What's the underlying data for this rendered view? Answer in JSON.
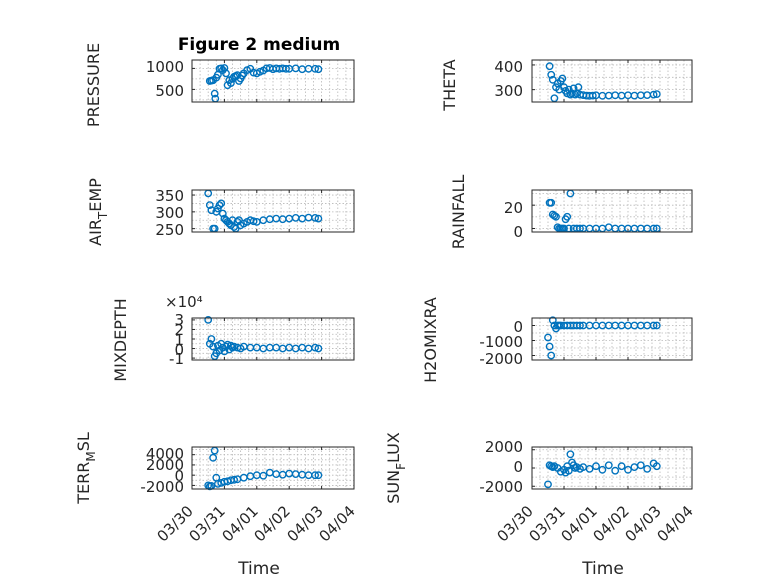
{
  "figure": {
    "background": "#ffffff",
    "marker_color": "#0072BD"
  },
  "chart_data": [
    {
      "id": "pressure",
      "type": "scatter",
      "title": "Figure 2 medium",
      "ylabel": "PRESSURE",
      "xlabel": "",
      "xlim": [
        0,
        5
      ],
      "ylim": [
        200,
        1200
      ],
      "yticks": [
        500,
        1000
      ],
      "ytick_labels": [
        "500",
        "1000"
      ],
      "x": [
        0.55,
        0.6,
        0.65,
        0.7,
        0.72,
        0.75,
        0.8,
        0.85,
        0.9,
        0.95,
        1.0,
        1.05,
        1.1,
        1.15,
        1.2,
        1.25,
        1.3,
        1.35,
        1.4,
        1.45,
        1.5,
        1.55,
        1.6,
        1.7,
        1.8,
        1.9,
        2.0,
        2.1,
        2.2,
        2.3,
        2.4,
        2.5,
        2.6,
        2.7,
        2.8,
        2.9,
        3.0,
        3.2,
        3.4,
        3.6,
        3.8,
        3.9
      ],
      "values": [
        700,
        710,
        720,
        400,
        280,
        780,
        850,
        990,
        1000,
        960,
        1010,
        880,
        600,
        720,
        650,
        750,
        800,
        820,
        840,
        700,
        760,
        830,
        880,
        960,
        990,
        900,
        880,
        920,
        950,
        1000,
        1010,
        980,
        1000,
        990,
        1000,
        990,
        990,
        1000,
        980,
        990,
        990,
        980
      ]
    },
    {
      "id": "theta",
      "type": "scatter",
      "title": "",
      "ylabel": "THETA",
      "xlabel": "",
      "xlim": [
        0,
        5
      ],
      "ylim": [
        250,
        420
      ],
      "yticks": [
        300,
        400
      ],
      "ytick_labels": [
        "300",
        "400"
      ],
      "x": [
        0.55,
        0.6,
        0.65,
        0.7,
        0.75,
        0.8,
        0.85,
        0.9,
        0.95,
        1.0,
        1.05,
        1.1,
        1.15,
        1.2,
        1.25,
        1.3,
        1.35,
        1.4,
        1.45,
        1.5,
        1.6,
        1.7,
        1.8,
        1.9,
        2.0,
        2.2,
        2.4,
        2.6,
        2.8,
        3.0,
        3.2,
        3.4,
        3.6,
        3.8,
        3.9
      ],
      "values": [
        395,
        360,
        340,
        265,
        310,
        325,
        300,
        335,
        345,
        310,
        295,
        285,
        300,
        280,
        285,
        305,
        280,
        285,
        310,
        280,
        278,
        276,
        275,
        276,
        277,
        275,
        276,
        277,
        276,
        277,
        276,
        277,
        278,
        280,
        282
      ]
    },
    {
      "id": "air_temp",
      "type": "scatter",
      "title": "",
      "ylabel": "AIR_TEMP",
      "xlim": [
        0,
        5
      ],
      "ylim": [
        240,
        365
      ],
      "yticks": [
        250,
        300,
        350
      ],
      "ytick_labels": [
        "250",
        "300",
        "350"
      ],
      "x": [
        0.5,
        0.55,
        0.6,
        0.65,
        0.7,
        0.75,
        0.8,
        0.85,
        0.9,
        0.95,
        1.0,
        1.05,
        1.1,
        1.15,
        1.2,
        1.25,
        1.3,
        1.35,
        1.4,
        1.45,
        1.5,
        1.6,
        1.7,
        1.8,
        1.9,
        2.0,
        2.2,
        2.4,
        2.6,
        2.8,
        3.0,
        3.2,
        3.4,
        3.6,
        3.8,
        3.9
      ],
      "values": [
        355,
        320,
        305,
        250,
        250,
        300,
        310,
        320,
        325,
        295,
        280,
        275,
        270,
        265,
        260,
        275,
        255,
        250,
        270,
        275,
        260,
        265,
        270,
        275,
        272,
        270,
        275,
        278,
        280,
        278,
        280,
        282,
        280,
        283,
        282,
        280
      ]
    },
    {
      "id": "rainfall",
      "type": "scatter",
      "title": "",
      "ylabel": "RAINFALL",
      "xlim": [
        0,
        5
      ],
      "ylim": [
        -3,
        33
      ],
      "yticks": [
        0,
        20
      ],
      "ytick_labels": [
        "0",
        "20"
      ],
      "x": [
        0.55,
        0.6,
        0.65,
        0.7,
        0.75,
        0.8,
        0.85,
        0.9,
        0.95,
        1.0,
        1.05,
        1.1,
        1.15,
        1.2,
        1.3,
        1.4,
        1.5,
        1.6,
        1.8,
        2.0,
        2.2,
        2.4,
        2.6,
        2.8,
        3.0,
        3.2,
        3.4,
        3.6,
        3.8,
        3.9
      ],
      "values": [
        22,
        22,
        12,
        11,
        10,
        1,
        0,
        0,
        0,
        0,
        8,
        10,
        0,
        30,
        0,
        0,
        0,
        0,
        0,
        0,
        0,
        1,
        0,
        0,
        0,
        0,
        0,
        0,
        0,
        0
      ]
    },
    {
      "id": "mixdepth",
      "type": "scatter",
      "title": "",
      "ylabel": "MIXDEPTH",
      "exponent_label": "×10⁴",
      "xlim": [
        0,
        5
      ],
      "ylim": [
        -1.2,
        3.2
      ],
      "yticks": [
        -1,
        0,
        1,
        2,
        3
      ],
      "ytick_labels": [
        "-1",
        "0",
        "1",
        "2",
        "3"
      ],
      "x": [
        0.5,
        0.55,
        0.6,
        0.65,
        0.7,
        0.75,
        0.8,
        0.85,
        0.9,
        0.95,
        1.0,
        1.05,
        1.1,
        1.15,
        1.2,
        1.25,
        1.3,
        1.4,
        1.5,
        1.6,
        1.8,
        2.0,
        2.2,
        2.4,
        2.6,
        2.8,
        3.0,
        3.2,
        3.4,
        3.6,
        3.8,
        3.9
      ],
      "values": [
        3.0,
        0.5,
        1.0,
        0.2,
        -0.8,
        -0.5,
        0.3,
        -0.2,
        0.5,
        0.1,
        -0.3,
        0.2,
        0.4,
        -0.1,
        0.3,
        0.1,
        0.2,
        0.1,
        0.0,
        0.2,
        0.1,
        0.1,
        0.0,
        0.1,
        0.1,
        0.0,
        0.1,
        0.0,
        0.1,
        0.0,
        0.1,
        0.0
      ]
    },
    {
      "id": "h2omixra",
      "type": "scatter",
      "title": "",
      "ylabel": "H2OMIXRA",
      "xlim": [
        0,
        5
      ],
      "ylim": [
        -2300,
        500
      ],
      "yticks": [
        -2000,
        -1000,
        0
      ],
      "ytick_labels": [
        "-2000",
        "-1000",
        "0"
      ],
      "x": [
        0.5,
        0.55,
        0.6,
        0.65,
        0.7,
        0.75,
        0.8,
        0.85,
        0.9,
        1.0,
        1.1,
        1.2,
        1.3,
        1.4,
        1.5,
        1.6,
        1.8,
        2.0,
        2.2,
        2.4,
        2.6,
        2.8,
        3.0,
        3.2,
        3.4,
        3.6,
        3.8,
        3.9
      ],
      "values": [
        -800,
        -1400,
        -2000,
        350,
        0,
        -200,
        0,
        0,
        0,
        0,
        0,
        0,
        0,
        0,
        0,
        0,
        0,
        0,
        0,
        0,
        0,
        0,
        0,
        0,
        0,
        0,
        0,
        0
      ]
    },
    {
      "id": "terr_msl",
      "type": "scatter",
      "title": "",
      "ylabel": "TERR_MSL",
      "xlim": [
        0,
        5
      ],
      "ylim": [
        -2700,
        5500
      ],
      "yticks": [
        -2000,
        0,
        2000,
        4000
      ],
      "ytick_labels": [
        "-2000",
        "0",
        "2000",
        "4000"
      ],
      "x": [
        0.5,
        0.55,
        0.6,
        0.65,
        0.7,
        0.75,
        0.8,
        0.9,
        1.0,
        1.1,
        1.2,
        1.3,
        1.4,
        1.6,
        1.8,
        2.0,
        2.2,
        2.4,
        2.6,
        2.8,
        3.0,
        3.2,
        3.4,
        3.6,
        3.8,
        3.9
      ],
      "values": [
        -2000,
        -2200,
        -2100,
        3400,
        4800,
        -500,
        -1700,
        -1500,
        -1300,
        -1200,
        -1000,
        -900,
        -800,
        -500,
        -200,
        0,
        -100,
        500,
        200,
        100,
        300,
        200,
        100,
        0,
        0,
        0
      ]
    },
    {
      "id": "sun_flux",
      "type": "scatter",
      "title": "",
      "ylabel": "SUN_FLUX",
      "xlabel": "Time",
      "xlim": [
        0,
        5
      ],
      "ylim": [
        -2300,
        2300
      ],
      "yticks": [
        -2000,
        0,
        2000
      ],
      "ytick_labels": [
        "-2000",
        "0",
        "2000"
      ],
      "x": [
        0.5,
        0.55,
        0.6,
        0.65,
        0.7,
        0.8,
        0.9,
        1.0,
        1.05,
        1.1,
        1.15,
        1.2,
        1.25,
        1.3,
        1.35,
        1.4,
        1.5,
        1.6,
        1.8,
        2.0,
        2.2,
        2.4,
        2.6,
        2.8,
        3.0,
        3.2,
        3.4,
        3.6,
        3.8,
        3.9
      ],
      "values": [
        -1800,
        300,
        200,
        100,
        200,
        0,
        -400,
        -200,
        -500,
        200,
        -300,
        1500,
        600,
        300,
        0,
        100,
        -100,
        100,
        -100,
        200,
        -200,
        300,
        -300,
        200,
        -200,
        100,
        300,
        -100,
        500,
        200
      ]
    }
  ],
  "x_axis": {
    "tick_labels": [
      "03/30",
      "03/31",
      "04/01",
      "04/02",
      "04/03",
      "04/04"
    ],
    "tick_values": [
      0,
      1,
      2,
      3,
      4,
      5
    ],
    "label": "Time"
  },
  "ylabels": {
    "air_temp_main": "AIR",
    "air_temp_sub": "T",
    "air_temp_rest": "EMP",
    "terr_main": "TERR",
    "terr_sub": "M",
    "terr_rest": "SL",
    "sun_main": "SUN",
    "sun_sub": "F",
    "sun_rest": "LUX"
  }
}
